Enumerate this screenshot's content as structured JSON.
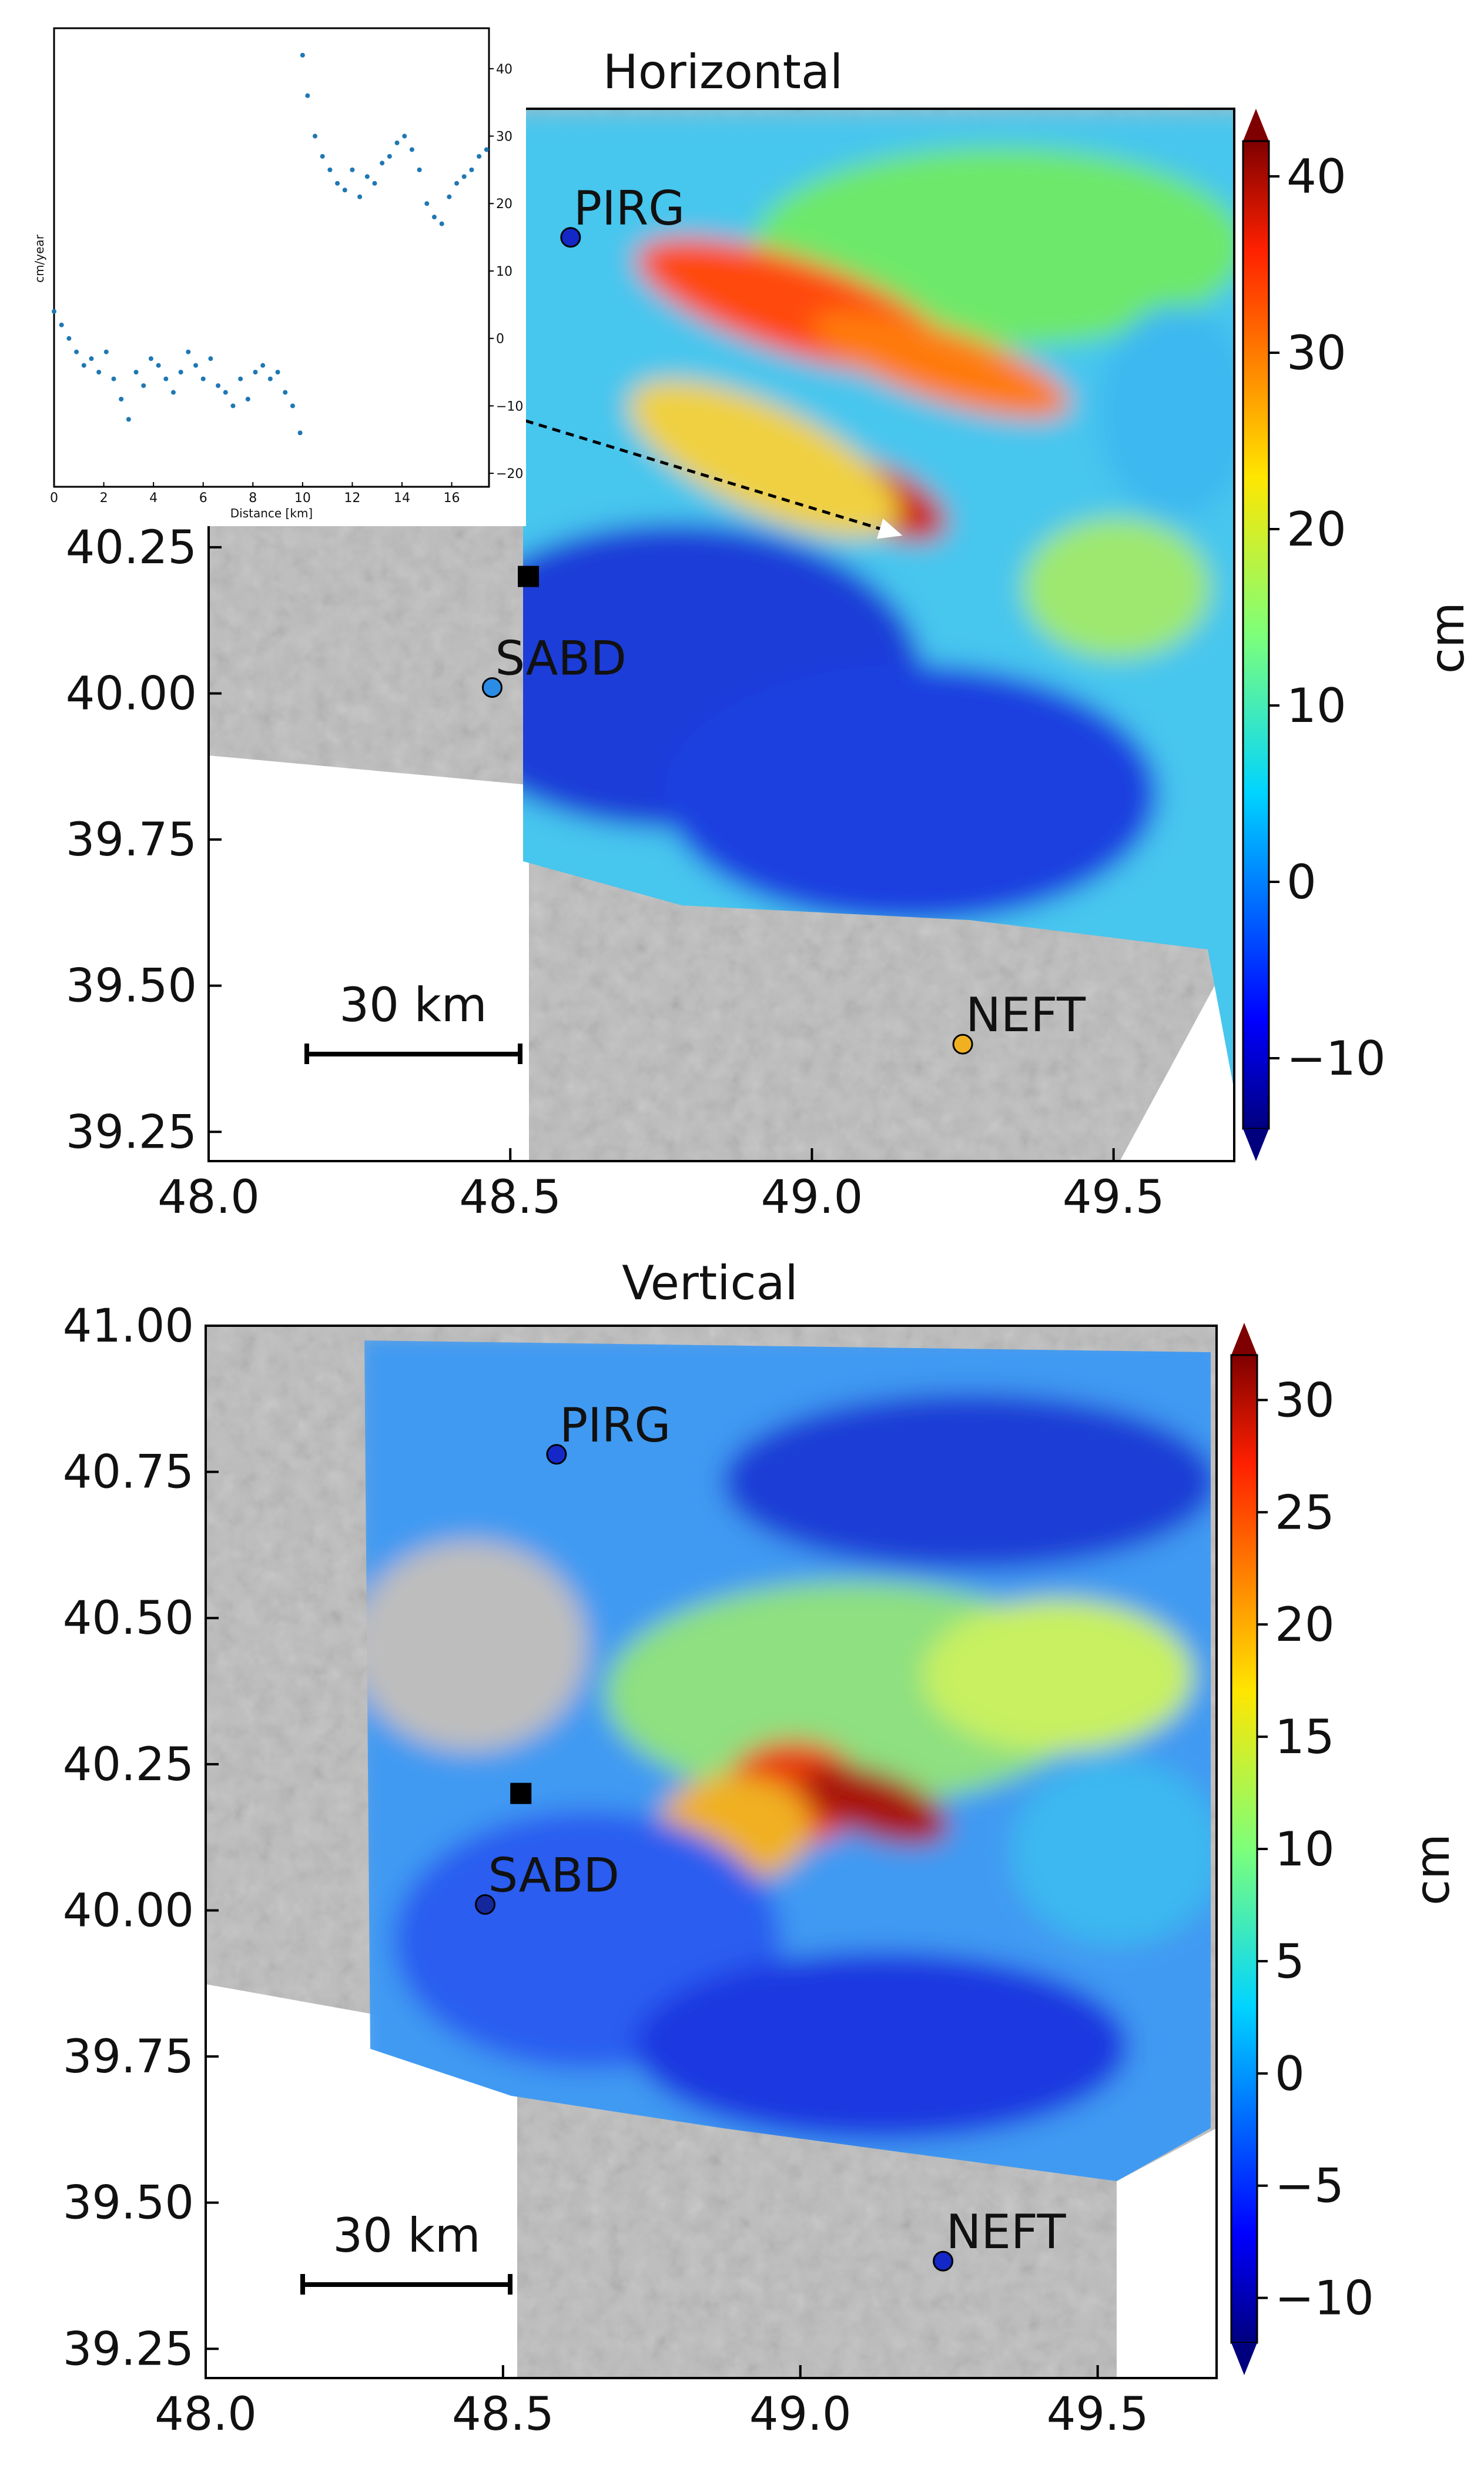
{
  "chart_data": [
    {
      "type": "heatmap",
      "title": "Horizontal",
      "colorbar": {
        "label": "cm",
        "vmin": -14,
        "vmax": 42,
        "ticks": [
          -10,
          0,
          10,
          20,
          30,
          40
        ],
        "tick_labels": [
          "−10",
          "0",
          "10",
          "20",
          "30",
          "40"
        ],
        "colormap": "jet"
      },
      "xlim": [
        48.0,
        49.7
      ],
      "ylim": [
        39.2,
        41.0
      ],
      "xticks": [
        48.0,
        48.5,
        49.0,
        49.5
      ],
      "xtick_labels": [
        "48.0",
        "48.5",
        "49.0",
        "49.5"
      ],
      "yticks": [
        39.25,
        39.5,
        39.75,
        40.0,
        40.25
      ],
      "ytick_labels": [
        "39.25",
        "39.50",
        "39.75",
        "40.00",
        "40.25"
      ],
      "stations": [
        {
          "name": "PIRG",
          "lon": 48.6,
          "lat": 40.78,
          "color": "#1428c8"
        },
        {
          "name": "SABD",
          "lon": 48.47,
          "lat": 40.01,
          "color": "#2b8ce6"
        },
        {
          "name": "NEFT",
          "lon": 49.25,
          "lat": 39.4,
          "color": "#f0b020"
        }
      ],
      "epicenter": {
        "lon": 48.53,
        "lat": 40.2
      },
      "profile": {
        "lon": [
          48.1,
          49.15
        ],
        "lat": [
          40.6,
          40.27
        ]
      },
      "scale_bar": "30 km",
      "inset": {
        "type": "scatter",
        "xlabel": "Distance [km]",
        "ylabel": "cm/year",
        "xlim": [
          0,
          17.5
        ],
        "ylim": [
          -22,
          46
        ],
        "xticks": [
          0,
          2,
          4,
          6,
          8,
          10,
          12,
          14,
          16
        ],
        "xtick_labels": [
          "0",
          "2",
          "4",
          "6",
          "8",
          "10",
          "12",
          "14",
          "16"
        ],
        "yticks": [
          -20,
          -10,
          0,
          10,
          20,
          30,
          40
        ],
        "ytick_labels": [
          "−20",
          "−10",
          "0",
          "10",
          "20",
          "30",
          "40"
        ],
        "color": "#1f77b4",
        "x": [
          0.0,
          0.3,
          0.6,
          0.9,
          1.2,
          1.5,
          1.8,
          2.1,
          2.4,
          2.7,
          3.0,
          3.3,
          3.6,
          3.9,
          4.2,
          4.5,
          4.8,
          5.1,
          5.4,
          5.7,
          6.0,
          6.3,
          6.6,
          6.9,
          7.2,
          7.5,
          7.8,
          8.1,
          8.4,
          8.7,
          9.0,
          9.3,
          9.6,
          9.9,
          10.0,
          10.2,
          10.5,
          10.8,
          11.1,
          11.4,
          11.7,
          12.0,
          12.3,
          12.6,
          12.9,
          13.2,
          13.5,
          13.8,
          14.1,
          14.4,
          14.7,
          15.0,
          15.3,
          15.6,
          15.9,
          16.2,
          16.5,
          16.8,
          17.1,
          17.4
        ],
        "y": [
          4,
          2,
          0,
          -2,
          -4,
          -3,
          -5,
          -2,
          -6,
          -9,
          -12,
          -5,
          -7,
          -3,
          -4,
          -6,
          -8,
          -5,
          -2,
          -4,
          -6,
          -3,
          -7,
          -8,
          -10,
          -6,
          -9,
          -5,
          -4,
          -6,
          -5,
          -8,
          -10,
          -14,
          42,
          36,
          30,
          27,
          25,
          23,
          22,
          25,
          21,
          24,
          23,
          26,
          27,
          29,
          30,
          28,
          25,
          20,
          18,
          17,
          21,
          23,
          24,
          25,
          27,
          28
        ]
      }
    },
    {
      "type": "heatmap",
      "title": "Vertical",
      "colorbar": {
        "label": "cm",
        "vmin": -12,
        "vmax": 32,
        "ticks": [
          -10,
          -5,
          0,
          5,
          10,
          15,
          20,
          25,
          30
        ],
        "tick_labels": [
          "−10",
          "−5",
          "0",
          "5",
          "10",
          "15",
          "20",
          "25",
          "30"
        ],
        "colormap": "jet"
      },
      "xlim": [
        48.0,
        49.7
      ],
      "ylim": [
        39.2,
        41.0
      ],
      "xticks": [
        48.0,
        48.5,
        49.0,
        49.5
      ],
      "xtick_labels": [
        "48.0",
        "48.5",
        "49.0",
        "49.5"
      ],
      "yticks": [
        39.25,
        39.5,
        39.75,
        40.0,
        40.25,
        40.5,
        40.75,
        41.0
      ],
      "ytick_labels": [
        "39.25",
        "39.50",
        "39.75",
        "40.00",
        "40.25",
        "40.50",
        "40.75",
        "41.00"
      ],
      "stations": [
        {
          "name": "PIRG",
          "lon": 48.59,
          "lat": 40.78,
          "color": "#1428c8"
        },
        {
          "name": "SABD",
          "lon": 48.47,
          "lat": 40.01,
          "color": "#14289c"
        },
        {
          "name": "NEFT",
          "lon": 49.24,
          "lat": 39.4,
          "color": "#1428c8"
        }
      ],
      "epicenter": {
        "lon": 48.53,
        "lat": 40.2
      },
      "scale_bar": "30 km"
    }
  ]
}
